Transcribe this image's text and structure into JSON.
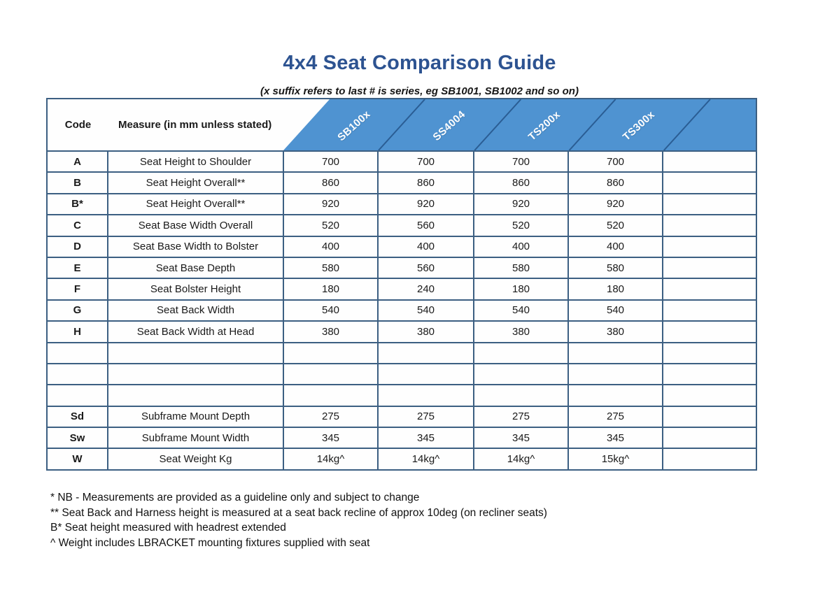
{
  "page": {
    "title": "4x4 Seat Comparison Guide",
    "subtitle": "(x suffix refers to last # is series, eg SB1001, SB1002 and so on)"
  },
  "table": {
    "header": {
      "code_label": "Code",
      "measure_label": "Measure (in mm unless stated)",
      "products": [
        "SB100x",
        "SS4004",
        "TS200x",
        "TS300x"
      ]
    },
    "rows": [
      {
        "code": "A",
        "measure": "Seat Height to Shoulder",
        "values": [
          "700",
          "700",
          "700",
          "700"
        ]
      },
      {
        "code": "B",
        "measure": "Seat Height Overall**",
        "values": [
          "860",
          "860",
          "860",
          "860"
        ]
      },
      {
        "code": "B*",
        "measure": "Seat Height Overall**",
        "values": [
          "920",
          "920",
          "920",
          "920"
        ]
      },
      {
        "code": "C",
        "measure": "Seat Base Width Overall",
        "values": [
          "520",
          "560",
          "520",
          "520"
        ]
      },
      {
        "code": "D",
        "measure": "Seat Base Width to Bolster",
        "values": [
          "400",
          "400",
          "400",
          "400"
        ]
      },
      {
        "code": "E",
        "measure": "Seat Base Depth",
        "values": [
          "580",
          "560",
          "580",
          "580"
        ]
      },
      {
        "code": "F",
        "measure": "Seat Bolster Height",
        "values": [
          "180",
          "240",
          "180",
          "180"
        ]
      },
      {
        "code": "G",
        "measure": "Seat Back Width",
        "values": [
          "540",
          "540",
          "540",
          "540"
        ]
      },
      {
        "code": "H",
        "measure": "Seat Back Width at Head",
        "values": [
          "380",
          "380",
          "380",
          "380"
        ]
      },
      {
        "code": "",
        "measure": "",
        "values": [
          "",
          "",
          "",
          ""
        ]
      },
      {
        "code": "",
        "measure": "",
        "values": [
          "",
          "",
          "",
          ""
        ]
      },
      {
        "code": "",
        "measure": "",
        "values": [
          "",
          "",
          "",
          ""
        ]
      },
      {
        "code": "Sd",
        "measure": "Subframe Mount Depth",
        "values": [
          "275",
          "275",
          "275",
          "275"
        ]
      },
      {
        "code": "Sw",
        "measure": "Subframe Mount Width",
        "values": [
          "345",
          "345",
          "345",
          "345"
        ]
      },
      {
        "code": "W",
        "measure": "Seat Weight Kg",
        "values": [
          "14kg^",
          "14kg^",
          "14kg^",
          "15kg^"
        ]
      }
    ]
  },
  "footnotes": [
    "* NB - Measurements are provided as a guideline only and subject to change",
    "** Seat Back and Harness height is measured at a seat back recline of approx 10deg (on recliner seats)",
    "B* Seat height measured with headrest extended",
    "^ Weight includes LBRACKET mounting fixtures supplied with seat"
  ],
  "colors": {
    "title_blue": "#2d5391",
    "header_light_blue": "#cadcf0",
    "header_dark_blue": "#4f93d1",
    "grid_border": "#3c5f82",
    "diagonal_line": "#2a5d94",
    "header_text": "#ffffff"
  }
}
